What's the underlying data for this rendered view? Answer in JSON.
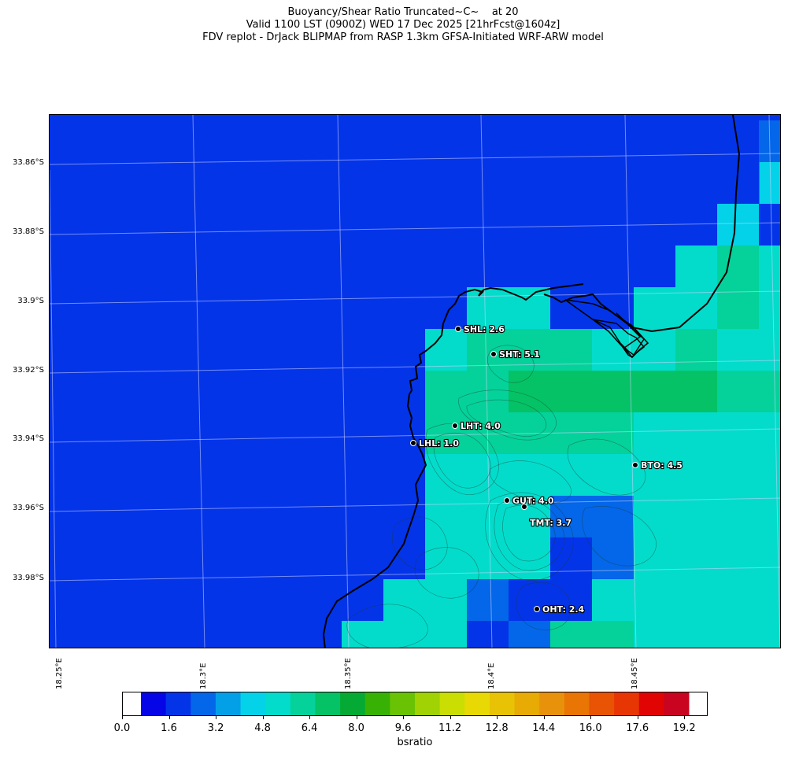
{
  "title": {
    "line1": "Buoyancy/Shear Ratio Truncated~C~    at 20",
    "line2": "Valid 1100 LST (0900Z) WED 17 Dec 2025 [21hrFcst@1604z]",
    "line3": "FDV replot - DrJack BLIPMAP from RASP 1.3km GFSA-Initiated WRF-ARW model"
  },
  "lat_labels": [
    "33.86°S",
    "33.88°S",
    "33.9°S",
    "33.92°S",
    "33.94°S",
    "33.96°S",
    "33.98°S"
  ],
  "lon_labels": [
    "18.25°E",
    "18.3°E",
    "18.35°E",
    "18.4°E",
    "18.45°E"
  ],
  "stations": [
    {
      "label": "SHL: 2.6",
      "value": 2.6
    },
    {
      "label": "SHT: 5.1",
      "value": 5.1
    },
    {
      "label": "LHT: 4.0",
      "value": 4.0
    },
    {
      "label": "LHL: 1.0",
      "value": 1.0
    },
    {
      "label": "BTO: 4.5",
      "value": 4.5
    },
    {
      "label": "GUT: 4.0",
      "value": 4.0
    },
    {
      "label": "TMT: 3.7",
      "value": 3.7
    },
    {
      "label": "OHT: 2.4",
      "value": 2.4
    }
  ],
  "colorbar": {
    "label": "bsratio",
    "ticks": [
      "0.0",
      "1.6",
      "3.2",
      "4.8",
      "6.4",
      "8.0",
      "9.6",
      "11.2",
      "12.8",
      "14.4",
      "16.0",
      "17.6",
      "19.2"
    ],
    "min": 0.0,
    "max": 20.0,
    "colors": [
      "#0505e8",
      "#0434e8",
      "#0466e8",
      "#03a0e8",
      "#03d2e8",
      "#03dccb",
      "#04d29a",
      "#04c265",
      "#04aa34",
      "#37b204",
      "#6ac204",
      "#a0d204",
      "#cade04",
      "#e8d904",
      "#e8c204",
      "#e8aa04",
      "#e8920b",
      "#e87504",
      "#e85304",
      "#e83504",
      "#e00404",
      "#c80420"
    ]
  },
  "colors": {
    "ocean": "#0434e8",
    "coastline": "#000000",
    "station_text": "#ffffff"
  }
}
